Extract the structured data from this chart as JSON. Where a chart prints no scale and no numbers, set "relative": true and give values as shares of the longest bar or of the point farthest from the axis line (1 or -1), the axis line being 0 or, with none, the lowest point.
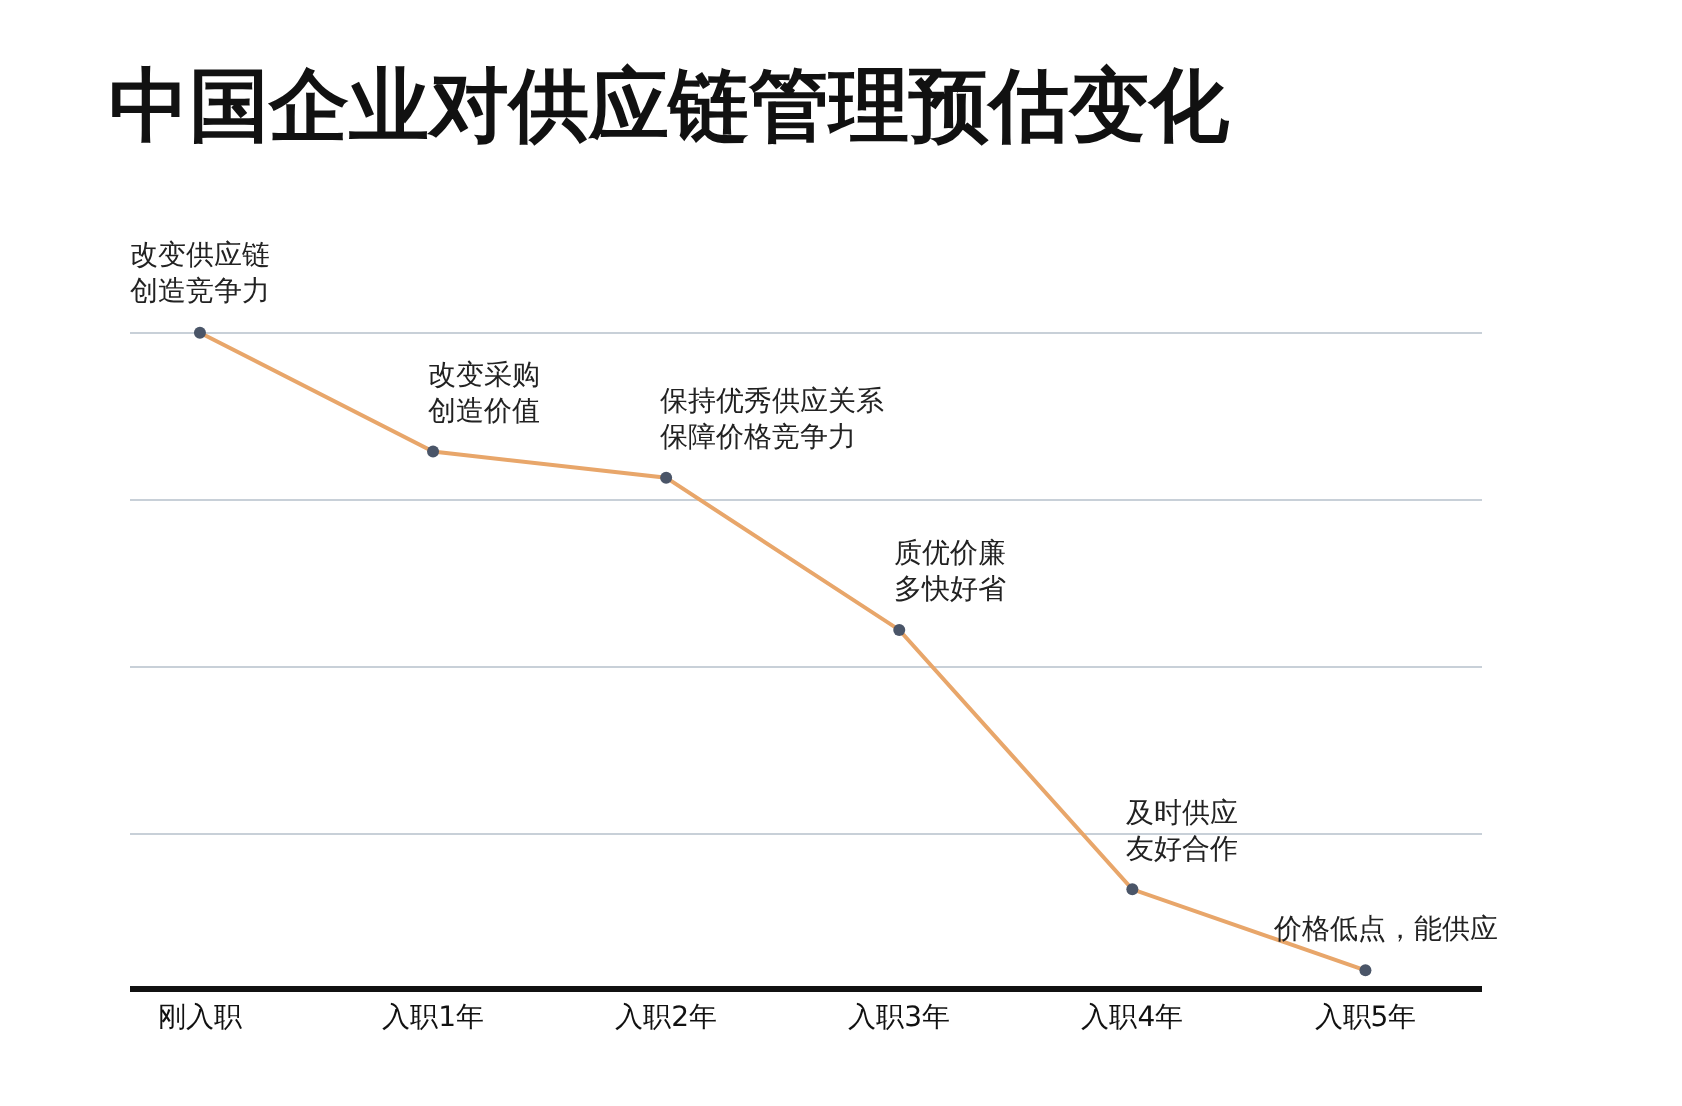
{
  "chart_data": {
    "type": "line",
    "title": "中国企业对供应链管理预估变化",
    "categories": [
      "刚入职",
      "入职1年",
      "入职2年",
      "入职3年",
      "入职4年",
      "入职5年"
    ],
    "series": [
      {
        "color": "#e8a66a",
        "values": [
          1,
          0.818,
          0.778,
          0.545,
          0.148,
          0.024
        ]
      }
    ],
    "relative": true,
    "grid": "y",
    "marker": "circle",
    "line_style": "solid",
    "annotations": [
      {
        "text": "改变供应链创造竞争力",
        "x": "刚入职",
        "y": 1
      },
      {
        "text": "改变采购创造价值",
        "x": "入职1年",
        "y": 0.818
      },
      {
        "text": "保持优秀供应关系保障价格竞争力",
        "x": "入职2年",
        "y": 0.778
      },
      {
        "text": "质优价廉多快好省",
        "x": "入职3年",
        "y": 0.545
      },
      {
        "text": "及时供应友好合作",
        "x": "入职4年",
        "y": 0.148
      },
      {
        "text": "价格低点，能供应",
        "x": "入职5年",
        "y": 0.024
      }
    ]
  }
}
